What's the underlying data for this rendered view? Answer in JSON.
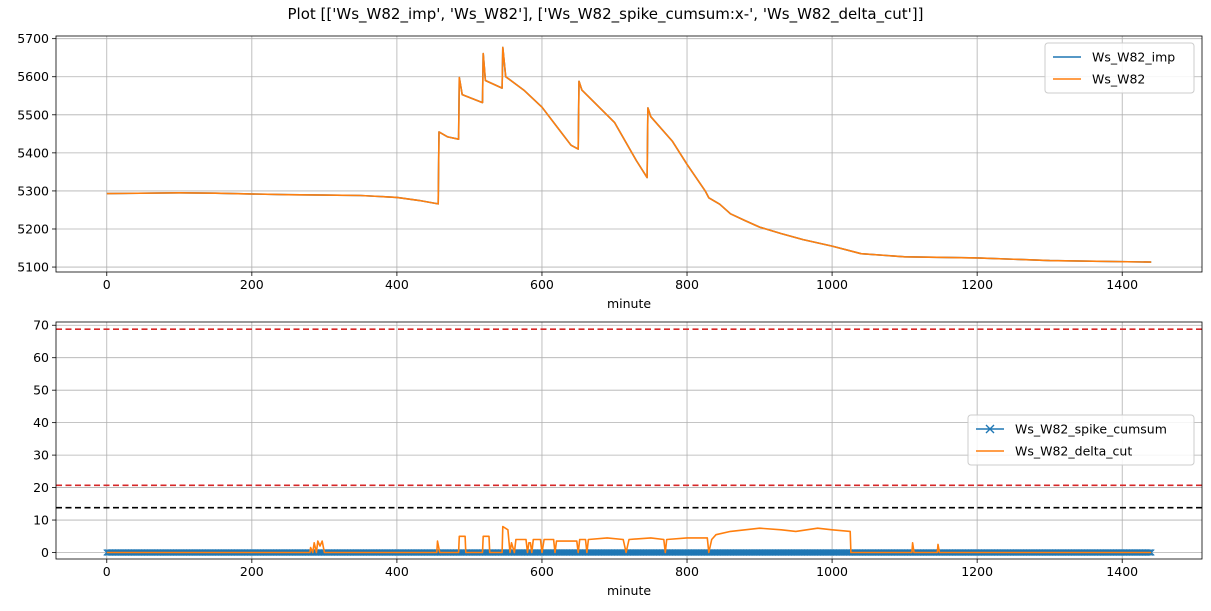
{
  "title": "Plot [['Ws_W82_imp', 'Ws_W82'], ['Ws_W82_spike_cumsum:x-', 'Ws_W82_delta_cut']]",
  "colors": {
    "blue": "#1f77b4",
    "orange": "#ff7f0e",
    "red": "#d62728",
    "black": "#000000",
    "grid": "#b0b0b0"
  },
  "chart_data": [
    {
      "type": "line",
      "xlabel": "minute",
      "ylabel": "",
      "xlim": [
        -70,
        1510
      ],
      "ylim": [
        5087,
        5707
      ],
      "xticks": [
        0,
        200,
        400,
        600,
        800,
        1000,
        1200,
        1400
      ],
      "yticks": [
        5100,
        5200,
        5300,
        5400,
        5500,
        5600,
        5700
      ],
      "grid": true,
      "legend": "top-right",
      "series": [
        {
          "name": "Ws_W82_imp",
          "color": "#1f77b4",
          "points": [
            [
              0,
              5293
            ],
            [
              100,
              5295
            ],
            [
              150,
              5294
            ],
            [
              250,
              5290
            ],
            [
              300,
              5289
            ],
            [
              350,
              5288
            ],
            [
              400,
              5283
            ],
            [
              430,
              5275
            ],
            [
              457,
              5266
            ],
            [
              458,
              5455
            ],
            [
              470,
              5442
            ],
            [
              485,
              5436
            ],
            [
              486,
              5598
            ],
            [
              490,
              5553
            ],
            [
              518,
              5532
            ],
            [
              519,
              5661
            ],
            [
              522,
              5590
            ],
            [
              545,
              5570
            ],
            [
              546,
              5677
            ],
            [
              550,
              5600
            ],
            [
              575,
              5565
            ],
            [
              600,
              5520
            ],
            [
              640,
              5420
            ],
            [
              650,
              5410
            ],
            [
              651,
              5588
            ],
            [
              655,
              5565
            ],
            [
              700,
              5480
            ],
            [
              730,
              5380
            ],
            [
              745,
              5335
            ],
            [
              746,
              5518
            ],
            [
              750,
              5495
            ],
            [
              780,
              5430
            ],
            [
              800,
              5370
            ],
            [
              825,
              5300
            ],
            [
              830,
              5282
            ],
            [
              845,
              5265
            ],
            [
              860,
              5240
            ],
            [
              880,
              5222
            ],
            [
              900,
              5205
            ],
            [
              930,
              5188
            ],
            [
              960,
              5172
            ],
            [
              1000,
              5155
            ],
            [
              1040,
              5135
            ],
            [
              1100,
              5127
            ],
            [
              1200,
              5124
            ],
            [
              1300,
              5117
            ],
            [
              1440,
              5113
            ]
          ]
        },
        {
          "name": "Ws_W82",
          "color": "#ff7f0e",
          "points": [
            [
              0,
              5293
            ],
            [
              100,
              5295
            ],
            [
              150,
              5294
            ],
            [
              250,
              5290
            ],
            [
              300,
              5289
            ],
            [
              350,
              5288
            ],
            [
              400,
              5283
            ],
            [
              430,
              5275
            ],
            [
              457,
              5266
            ],
            [
              458,
              5455
            ],
            [
              470,
              5442
            ],
            [
              485,
              5436
            ],
            [
              486,
              5598
            ],
            [
              490,
              5553
            ],
            [
              518,
              5532
            ],
            [
              519,
              5661
            ],
            [
              522,
              5590
            ],
            [
              545,
              5570
            ],
            [
              546,
              5677
            ],
            [
              550,
              5600
            ],
            [
              575,
              5565
            ],
            [
              600,
              5520
            ],
            [
              640,
              5420
            ],
            [
              650,
              5410
            ],
            [
              651,
              5588
            ],
            [
              655,
              5565
            ],
            [
              700,
              5480
            ],
            [
              730,
              5380
            ],
            [
              745,
              5335
            ],
            [
              746,
              5518
            ],
            [
              750,
              5495
            ],
            [
              780,
              5430
            ],
            [
              800,
              5370
            ],
            [
              825,
              5300
            ],
            [
              830,
              5282
            ],
            [
              845,
              5265
            ],
            [
              860,
              5240
            ],
            [
              880,
              5222
            ],
            [
              900,
              5205
            ],
            [
              930,
              5188
            ],
            [
              960,
              5172
            ],
            [
              1000,
              5155
            ],
            [
              1040,
              5135
            ],
            [
              1100,
              5127
            ],
            [
              1200,
              5124
            ],
            [
              1300,
              5117
            ],
            [
              1440,
              5113
            ]
          ]
        }
      ]
    },
    {
      "type": "line",
      "xlabel": "minute",
      "ylabel": "",
      "xlim": [
        -70,
        1510
      ],
      "ylim": [
        -2,
        71
      ],
      "xticks": [
        0,
        200,
        400,
        600,
        800,
        1000,
        1200,
        1400
      ],
      "yticks": [
        0,
        10,
        20,
        30,
        40,
        50,
        60,
        70
      ],
      "grid": true,
      "legend": "center-right",
      "hlines": [
        {
          "y": 68.8,
          "color": "#d62728",
          "style": "dashed"
        },
        {
          "y": 20.7,
          "color": "#d62728",
          "style": "dashed"
        },
        {
          "y": 13.8,
          "color": "#000000",
          "style": "dashed"
        }
      ],
      "series": [
        {
          "name": "Ws_W82_spike_cumsum",
          "color": "#1f77b4",
          "marker": "x",
          "x_range": [
            0,
            1440
          ],
          "y": 0
        },
        {
          "name": "Ws_W82_delta_cut",
          "color": "#ff7f0e",
          "points": [
            [
              0,
              0
            ],
            [
              280,
              0
            ],
            [
              281,
              1.5
            ],
            [
              284,
              0
            ],
            [
              286,
              3
            ],
            [
              289,
              0
            ],
            [
              291,
              3.5
            ],
            [
              294,
              2
            ],
            [
              297,
              3.5
            ],
            [
              300,
              0
            ],
            [
              455,
              0
            ],
            [
              456,
              3.5
            ],
            [
              459,
              0
            ],
            [
              485,
              0
            ],
            [
              486,
              5
            ],
            [
              494,
              5
            ],
            [
              495,
              0
            ],
            [
              518,
              0
            ],
            [
              519,
              5
            ],
            [
              527,
              5
            ],
            [
              528,
              0
            ],
            [
              545,
              0
            ],
            [
              546,
              8
            ],
            [
              553,
              7
            ],
            [
              556,
              0
            ],
            [
              558,
              3
            ],
            [
              562,
              0
            ],
            [
              564,
              4
            ],
            [
              578,
              4
            ],
            [
              580,
              0
            ],
            [
              582,
              3
            ],
            [
              584,
              3
            ],
            [
              586,
              0
            ],
            [
              588,
              4
            ],
            [
              598,
              4
            ],
            [
              600,
              0
            ],
            [
              603,
              4
            ],
            [
              616,
              4
            ],
            [
              618,
              0
            ],
            [
              620,
              3.5
            ],
            [
              648,
              3.5
            ],
            [
              650,
              0
            ],
            [
              652,
              4
            ],
            [
              660,
              4
            ],
            [
              662,
              0
            ],
            [
              664,
              4
            ],
            [
              690,
              4.5
            ],
            [
              712,
              4
            ],
            [
              716,
              0
            ],
            [
              720,
              4
            ],
            [
              750,
              4.5
            ],
            [
              768,
              4
            ],
            [
              770,
              0
            ],
            [
              772,
              4
            ],
            [
              800,
              4.5
            ],
            [
              828,
              4.5
            ],
            [
              830,
              0
            ],
            [
              834,
              4
            ],
            [
              840,
              5.5
            ],
            [
              860,
              6.5
            ],
            [
              880,
              7
            ],
            [
              900,
              7.5
            ],
            [
              930,
              7
            ],
            [
              950,
              6.5
            ],
            [
              980,
              7.5
            ],
            [
              1000,
              7
            ],
            [
              1025,
              6.5
            ],
            [
              1026,
              0
            ],
            [
              1110,
              0
            ],
            [
              1111,
              3
            ],
            [
              1113,
              0
            ],
            [
              1145,
              0
            ],
            [
              1146,
              2.5
            ],
            [
              1148,
              0
            ],
            [
              1440,
              0
            ]
          ]
        }
      ]
    }
  ]
}
